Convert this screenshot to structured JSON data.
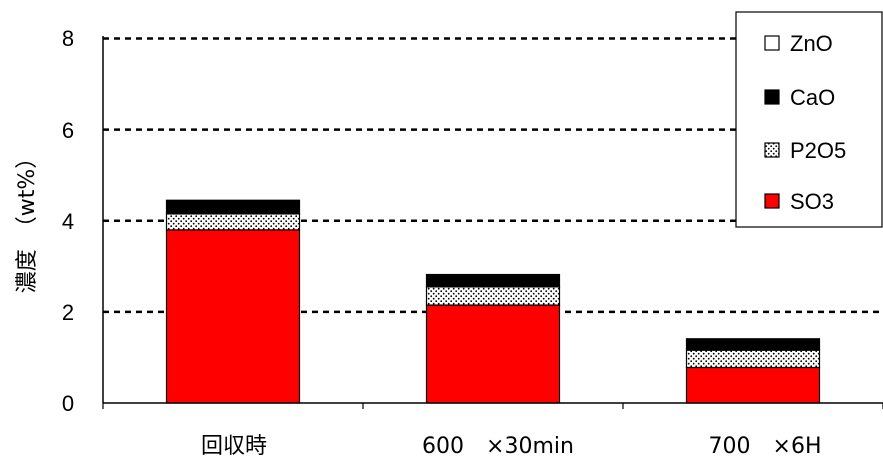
{
  "chart_data": {
    "type": "bar",
    "stacked": true,
    "categories": [
      "回収時",
      "600　×30min",
      "700　×6H"
    ],
    "series": [
      {
        "name": "SO3",
        "values": [
          3.8,
          2.15,
          0.78
        ],
        "color": "#ff0000",
        "pattern": "solid"
      },
      {
        "name": "P2O5",
        "values": [
          0.35,
          0.4,
          0.38
        ],
        "color": "#ffffff",
        "pattern": "dots"
      },
      {
        "name": "CaO",
        "values": [
          0.3,
          0.27,
          0.25
        ],
        "color": "#000000",
        "pattern": "solid"
      },
      {
        "name": "ZnO",
        "values": [
          0.0,
          0.0,
          0.0
        ],
        "color": "#ffffff",
        "pattern": "solid"
      }
    ],
    "ylabel": "濃度　（wt%）",
    "ylim": [
      0,
      8
    ],
    "yticks": [
      "0",
      "2",
      "4",
      "6",
      "8"
    ],
    "grid": "horizontal-dashed",
    "legend_position": "top-right",
    "legend_order": [
      "ZnO",
      "CaO",
      "P2O5",
      "SO3"
    ]
  }
}
